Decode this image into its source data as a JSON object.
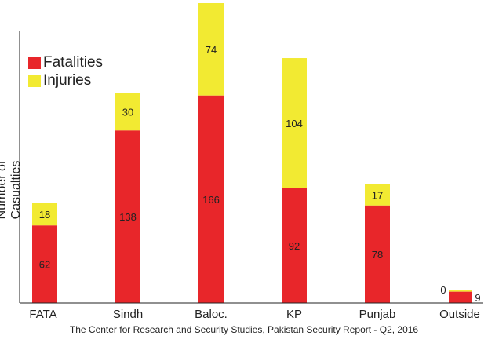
{
  "chart_data": {
    "type": "bar",
    "stacked": true,
    "categories": [
      "FATA",
      "Sindh",
      "Baloc.",
      "KP",
      "Punjab",
      "Outside"
    ],
    "series": [
      {
        "name": "Fatalities",
        "values": [
          62,
          138,
          166,
          92,
          78,
          9
        ],
        "color": "#e8262a"
      },
      {
        "name": "Injuries",
        "values": [
          18,
          30,
          74,
          104,
          17,
          0
        ],
        "color": "#f2ea32"
      }
    ],
    "ylabel": "Number of Casualties",
    "ylim": [
      0,
      240
    ],
    "grid": false,
    "legend_position": "top-left"
  },
  "source": "The Center for Research and Security Studies, Pakistan Security Report - Q2, 2016"
}
